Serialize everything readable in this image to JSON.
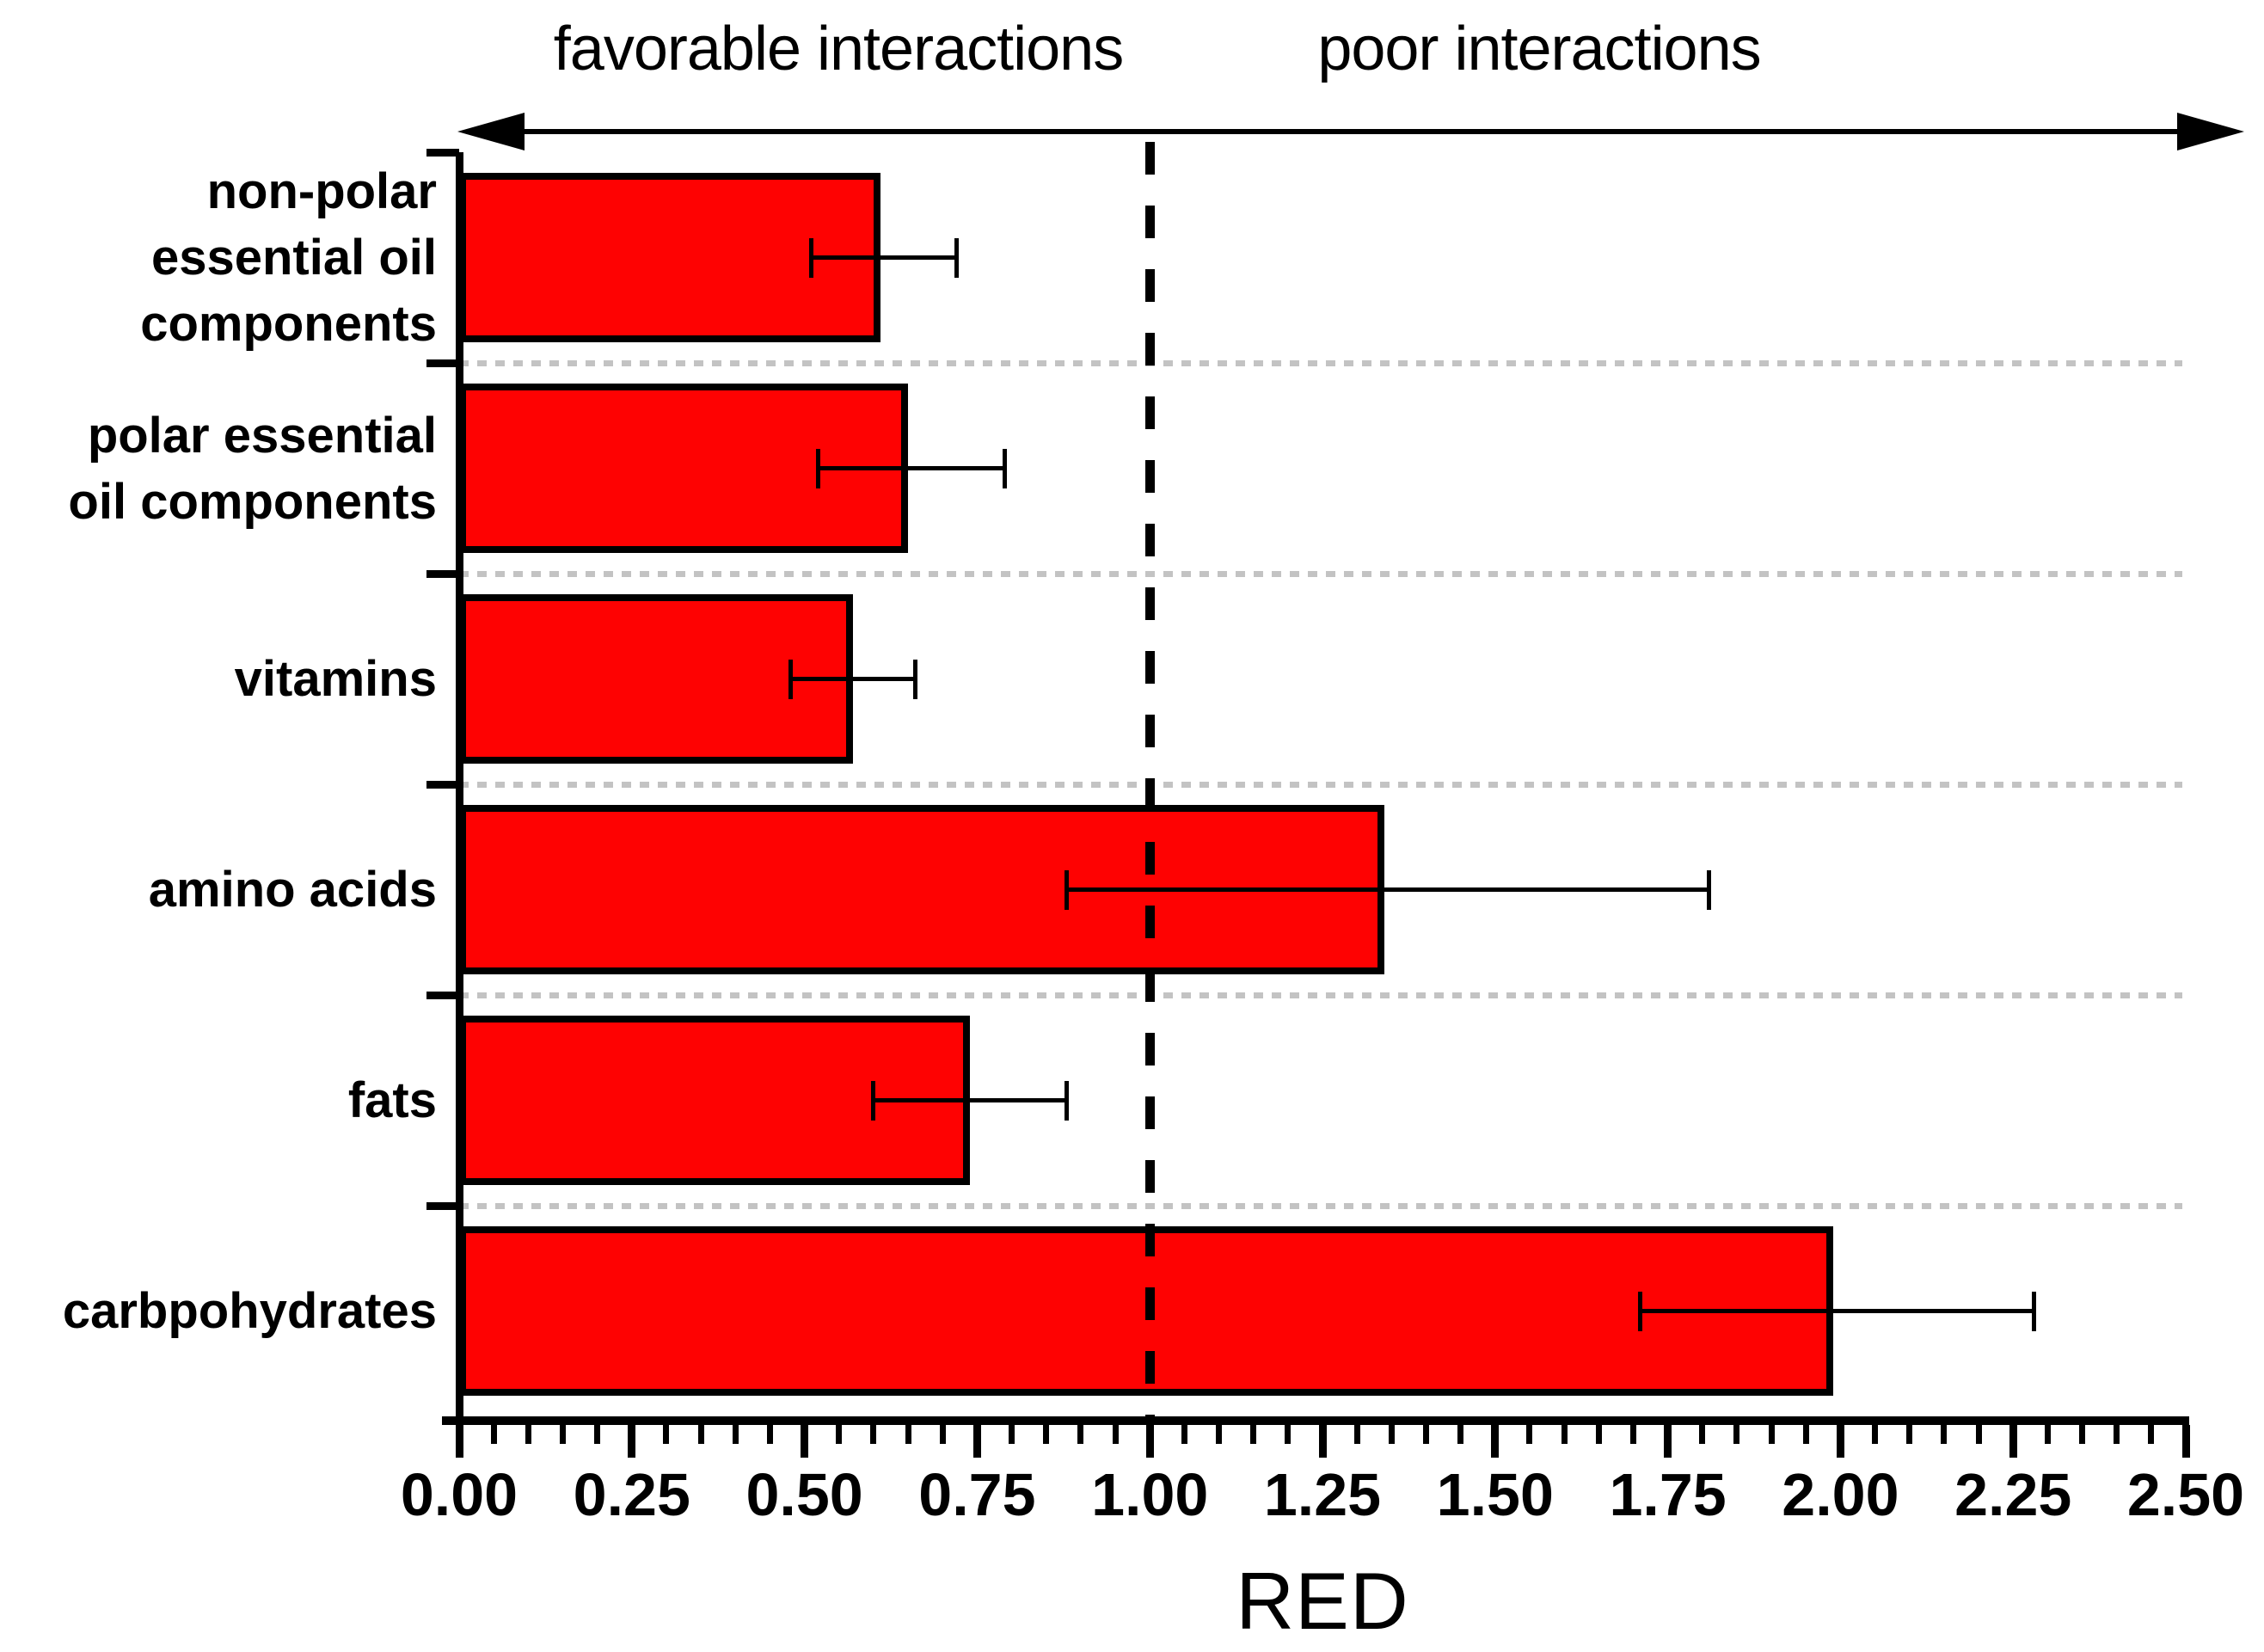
{
  "chart_data": {
    "type": "bar",
    "orientation": "horizontal",
    "title": "",
    "xlabel": "RED",
    "x_range": [
      0,
      2.5
    ],
    "x_major_step": 0.25,
    "x_minor_step": 0.05,
    "x_tick_labels": [
      "0.00",
      "0.25",
      "0.50",
      "0.75",
      "1.00",
      "1.25",
      "1.50",
      "1.75",
      "2.00",
      "2.25",
      "2.50"
    ],
    "reference_line_x": 1.0,
    "reference_line_style": "black dashed vertical",
    "grid": "horizontal dashed gray between categories",
    "legend_position": "none",
    "bar_color": "#fe0202",
    "gridline_color": "#c3c3c3",
    "top_labels": {
      "left": "favorable interactions",
      "right": "poor interactions"
    },
    "series": [
      {
        "label": "non-polar essential oil components",
        "label_lines": [
          "non-polar",
          "essential oil",
          "components"
        ],
        "value": 0.61,
        "error_low": 0.51,
        "error_high": 0.72
      },
      {
        "label": "polar essential oil components",
        "label_lines": [
          "polar essential",
          "oil components"
        ],
        "value": 0.65,
        "error_low": 0.52,
        "error_high": 0.79
      },
      {
        "label": "vitamins",
        "label_lines": [
          "vitamins"
        ],
        "value": 0.57,
        "error_low": 0.48,
        "error_high": 0.66
      },
      {
        "label": "amino acids",
        "label_lines": [
          "amino acids"
        ],
        "value": 1.34,
        "error_low": 0.88,
        "error_high": 1.81
      },
      {
        "label": "fats",
        "label_lines": [
          "fats"
        ],
        "value": 0.74,
        "error_low": 0.6,
        "error_high": 0.88
      },
      {
        "label": "carbpohydrates",
        "label_lines": [
          "carbpohydrates"
        ],
        "value": 1.99,
        "error_low": 1.71,
        "error_high": 2.28
      }
    ]
  }
}
